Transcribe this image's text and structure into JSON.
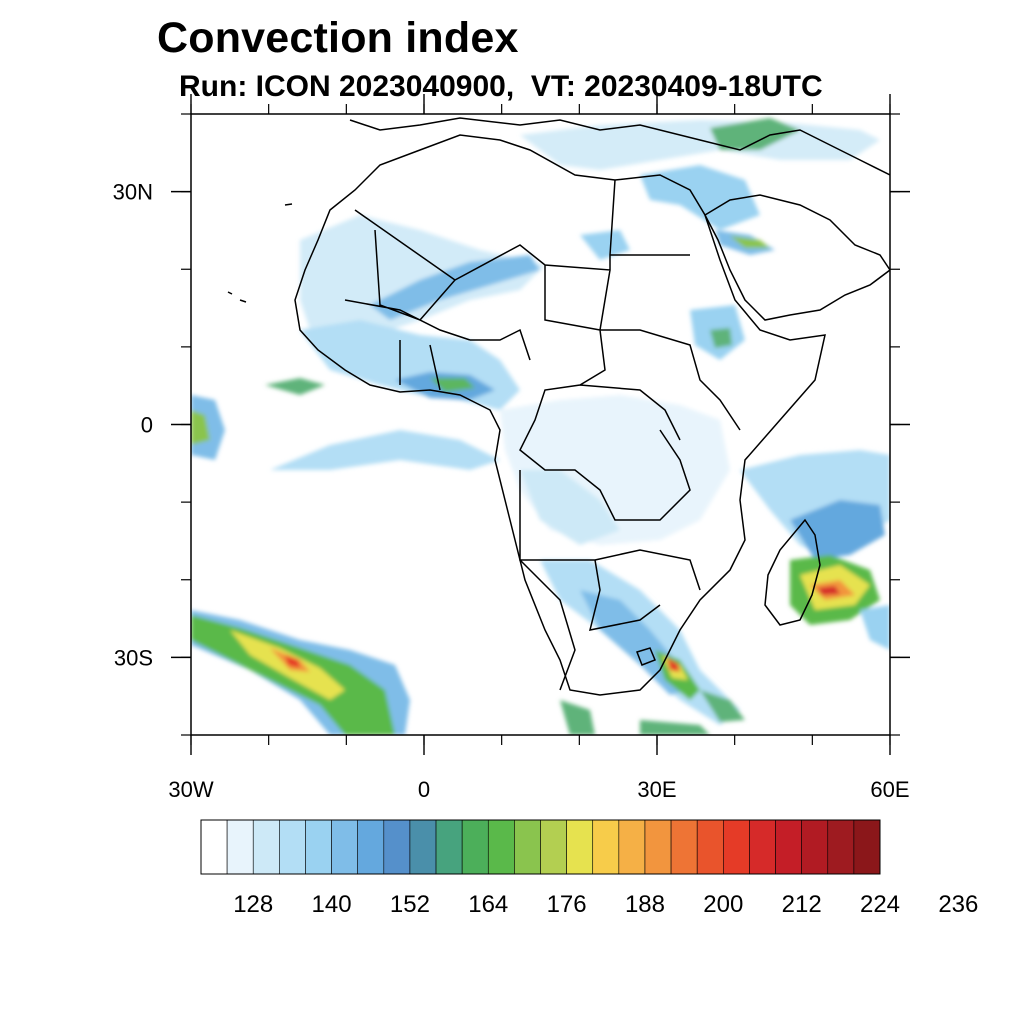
{
  "header": {
    "title": "Convection index",
    "subtitle": "Run: ICON 2023040900,  VT: 20230409-18UTC"
  },
  "map": {
    "region": "Africa",
    "lon_range": [
      -30,
      60
    ],
    "lat_range": [
      -40,
      40
    ],
    "lat_ticks": [
      {
        "value": 30,
        "label": "30N"
      },
      {
        "value": 0,
        "label": "0"
      },
      {
        "value": -30,
        "label": "30S"
      }
    ],
    "lon_ticks": [
      {
        "value": -30,
        "label": "30W"
      },
      {
        "value": 0,
        "label": "0"
      },
      {
        "value": 30,
        "label": "30E"
      },
      {
        "value": 60,
        "label": "60E"
      }
    ],
    "features": [
      {
        "name": "southern-indian-ocean-cell",
        "lon": -23,
        "lat": -30,
        "peak": 212
      },
      {
        "name": "madagascar-east-cell",
        "lon": 50,
        "lat": -21,
        "peak": 224
      },
      {
        "name": "southeast-africa-cell",
        "lon": 31,
        "lat": -31,
        "peak": 220
      },
      {
        "name": "gulf-of-guinea-band",
        "lon": 0,
        "lat": 5,
        "peak": 164
      },
      {
        "name": "arabia-band",
        "lon": 40,
        "lat": 24,
        "peak": 176
      }
    ]
  },
  "colorbar": {
    "labels": [
      "128",
      "140",
      "152",
      "164",
      "176",
      "188",
      "200",
      "212",
      "224",
      "236"
    ],
    "colors": [
      "#ffffff",
      "#e8f4fc",
      "#cde9f7",
      "#b3def5",
      "#9ad2f1",
      "#7fbde8",
      "#64a8de",
      "#5590cb",
      "#4a8faa",
      "#47a37e",
      "#4caf5a",
      "#5ab94a",
      "#8ac44e",
      "#b3cf51",
      "#e6e24f",
      "#f7cc4a",
      "#f5b046",
      "#f2953e",
      "#ee7435",
      "#e9542c",
      "#e53b27",
      "#d62a29",
      "#c41e27",
      "#b11b23",
      "#9e1b20",
      "#8b171a"
    ]
  }
}
